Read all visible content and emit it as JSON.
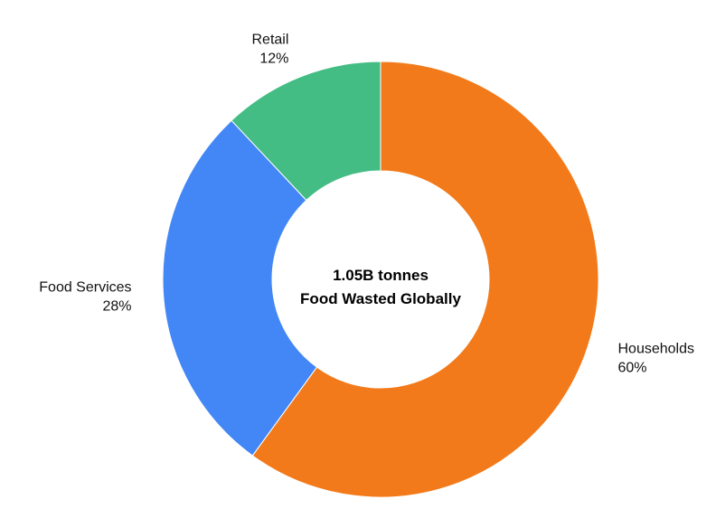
{
  "chart_data": {
    "type": "pie",
    "variant": "donut",
    "center_label": [
      "1.05B tonnes",
      "Food Wasted Globally"
    ],
    "slices": [
      {
        "label": "Households",
        "value": 60,
        "value_label": "60%",
        "color": "#F27A1A"
      },
      {
        "label": "Food Services",
        "value": 28,
        "value_label": "28%",
        "color": "#4287F5"
      },
      {
        "label": "Retail",
        "value": 12,
        "value_label": "12%",
        "color": "#43BD84"
      }
    ],
    "legend": "none",
    "label_placement": "outside"
  }
}
